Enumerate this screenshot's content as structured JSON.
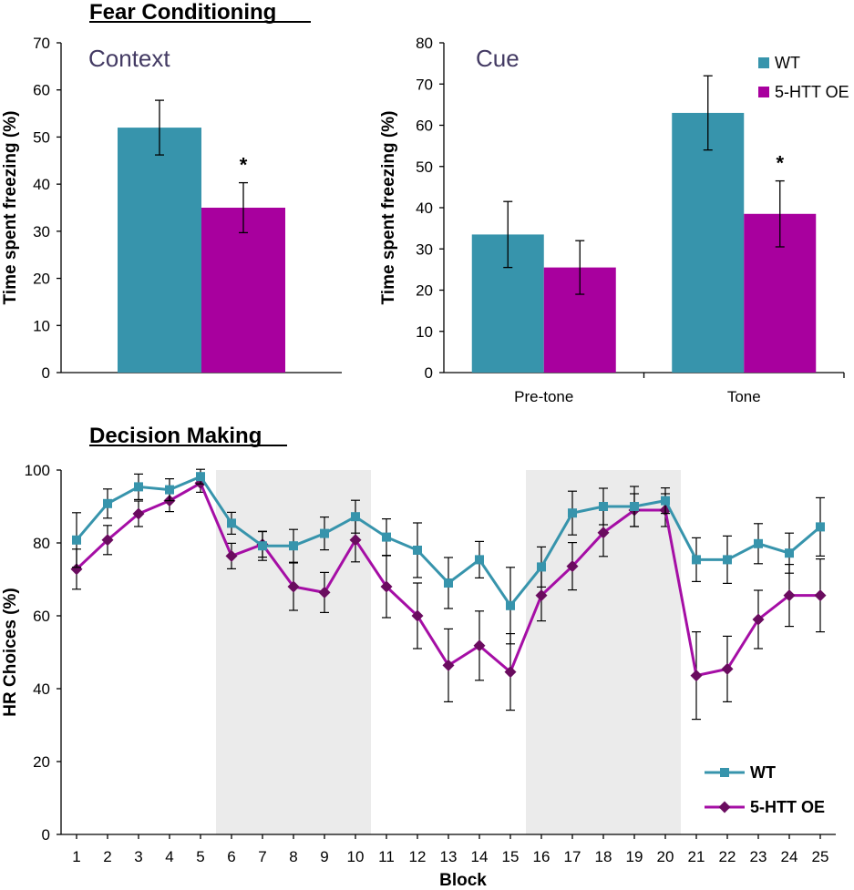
{
  "headings": {
    "fear": "Fear Conditioning",
    "decision": "Decision Making"
  },
  "colors": {
    "wt": "#3794ac",
    "oe": "#a8009e",
    "oe_line": "#a50ea5",
    "oe_marker": "#6a0c5f",
    "shade": "#ebebeb"
  },
  "chart_data": [
    {
      "type": "bar",
      "title": "Context",
      "ylabel": "Time spent freezing (%)",
      "ylim": [
        0,
        70
      ],
      "yticks": [
        "0",
        "10",
        "20",
        "30",
        "40",
        "50",
        "60",
        "70"
      ],
      "categories": [
        ""
      ],
      "series": [
        {
          "name": "WT",
          "values": [
            52
          ],
          "err": [
            5.8
          ]
        },
        {
          "name": "5-HTT OE",
          "values": [
            35
          ],
          "err": [
            5.3
          ]
        }
      ],
      "annotations": [
        "*"
      ]
    },
    {
      "type": "bar",
      "title": "Cue",
      "ylabel": "Time spent freezing (%)",
      "ylim": [
        0,
        80
      ],
      "yticks": [
        "0",
        "10",
        "20",
        "30",
        "40",
        "50",
        "60",
        "70",
        "80"
      ],
      "categories": [
        "Pre-tone",
        "Tone"
      ],
      "series": [
        {
          "name": "WT",
          "values": [
            33.5,
            63
          ],
          "err": [
            8,
            9
          ]
        },
        {
          "name": "5-HTT OE",
          "values": [
            25.5,
            38.5
          ],
          "err": [
            6.5,
            8
          ]
        }
      ],
      "legend": [
        "WT",
        "5-HTT OE"
      ],
      "legend_position": "top-right",
      "annotations": [
        "*"
      ]
    },
    {
      "type": "line",
      "ylabel": "HR Choices (%)",
      "xlabel": "Block",
      "ylim": [
        0,
        100
      ],
      "yticks": [
        "0",
        "20",
        "40",
        "60",
        "80",
        "100"
      ],
      "x": [
        1,
        2,
        3,
        4,
        5,
        6,
        7,
        8,
        9,
        10,
        11,
        12,
        13,
        14,
        15,
        16,
        17,
        18,
        19,
        20,
        21,
        22,
        23,
        24,
        25
      ],
      "shaded_ranges": [
        [
          5.5,
          10.5
        ],
        [
          15.5,
          20.5
        ]
      ],
      "legend_position": "bottom-right",
      "series": [
        {
          "name": "WT",
          "values": [
            80.8,
            90.8,
            95.4,
            94.6,
            98.2,
            85.4,
            79.2,
            79.2,
            82.6,
            87.2,
            81.6,
            78,
            69,
            75.4,
            62.8,
            73.4,
            88.2,
            90,
            90,
            91.6,
            75.4,
            75.4,
            79.8,
            77.2,
            84.4
          ],
          "err": [
            7.5,
            4,
            3.5,
            3,
            2,
            3,
            4,
            4.5,
            4.5,
            4.5,
            5,
            7.5,
            7,
            5,
            10.5,
            5.5,
            6,
            5,
            5.5,
            3.5,
            6,
            6.5,
            5.5,
            5.5,
            8
          ]
        },
        {
          "name": "5-HTT OE",
          "values": [
            72.8,
            80.8,
            88,
            91.6,
            96.4,
            76.4,
            79.6,
            68,
            66.4,
            80.8,
            68,
            60,
            46.4,
            51.8,
            44.6,
            65.6,
            73.6,
            82.8,
            89,
            89,
            43.6,
            45.4,
            59,
            65.6,
            65.6
          ],
          "err": [
            5.5,
            4,
            3.5,
            3,
            2.5,
            3.5,
            3.5,
            6.5,
            5.5,
            6,
            8.5,
            9,
            10,
            9.5,
            10.5,
            7,
            6.5,
            6.5,
            4.5,
            4.5,
            12,
            9,
            8,
            8.5,
            10
          ]
        }
      ]
    }
  ]
}
